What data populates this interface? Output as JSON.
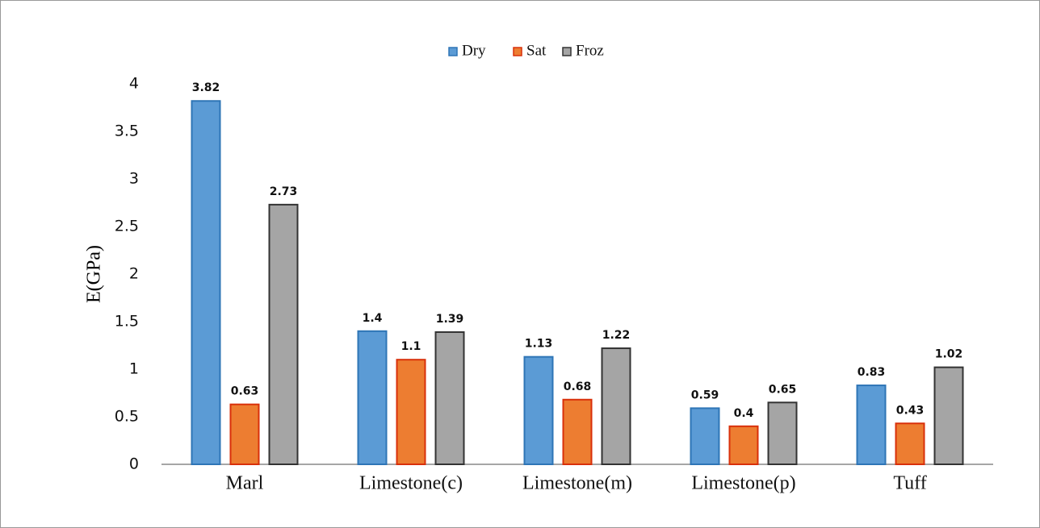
{
  "chart_data": {
    "type": "bar",
    "y_label": "E(GPa)",
    "categories": [
      "Marl",
      "Limestone(c)",
      "Limestone(m)",
      "Limestone(p)",
      "Tuff"
    ],
    "series": [
      {
        "name": "Dry",
        "color": "#5b9bd5",
        "values": [
          3.82,
          1.4,
          1.13,
          0.59,
          0.83
        ]
      },
      {
        "name": "Sat",
        "color": "#ed7d31",
        "values": [
          0.63,
          1.1,
          0.68,
          0.4,
          0.43
        ]
      },
      {
        "name": "Froz",
        "color": "#a5a5a5",
        "values": [
          2.73,
          1.39,
          1.22,
          0.65,
          1.02
        ]
      }
    ],
    "ylim": [
      0,
      4
    ],
    "yticks": [
      0,
      0.5,
      1,
      1.5,
      2,
      2.5,
      3,
      3.5,
      4
    ],
    "legend": "top",
    "grid": false
  }
}
